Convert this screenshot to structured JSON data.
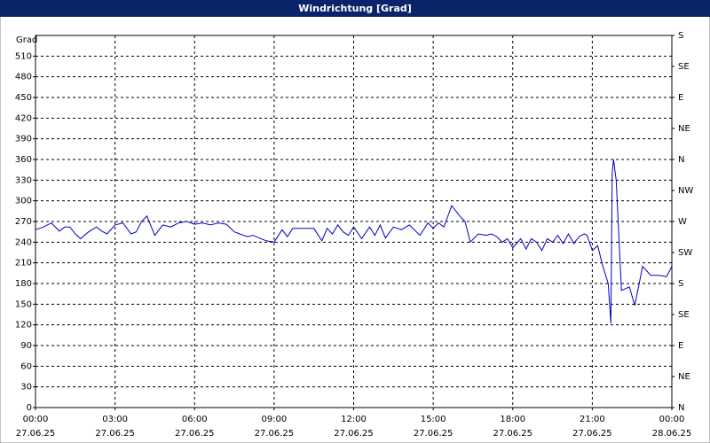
{
  "chart_data": {
    "type": "line",
    "title": "Windrichtung [Grad]",
    "y_label": "Grad",
    "xlim": [
      0,
      24
    ],
    "xticks": [
      {
        "value": 0,
        "label": "00:00",
        "date": "27.06.25"
      },
      {
        "value": 3,
        "label": "03:00",
        "date": "27.06.25"
      },
      {
        "value": 6,
        "label": "06:00",
        "date": "27.06.25"
      },
      {
        "value": 9,
        "label": "09:00",
        "date": "27.06.25"
      },
      {
        "value": 12,
        "label": "12:00",
        "date": "27.06.25"
      },
      {
        "value": 15,
        "label": "15:00",
        "date": "27.06.25"
      },
      {
        "value": 18,
        "label": "18:00",
        "date": "27.06.25"
      },
      {
        "value": 21,
        "label": "21:00",
        "date": "27.06.25"
      },
      {
        "value": 24,
        "label": "00:00",
        "date": "28.06.25"
      }
    ],
    "ylim": [
      0,
      540
    ],
    "yticks": [
      0,
      30,
      60,
      90,
      120,
      150,
      180,
      210,
      240,
      270,
      300,
      330,
      360,
      390,
      420,
      450,
      480,
      510
    ],
    "y2lim": [
      0,
      540
    ],
    "y2ticks": [
      {
        "value": 0,
        "label": "N"
      },
      {
        "value": 45,
        "label": "NE"
      },
      {
        "value": 90,
        "label": "E"
      },
      {
        "value": 135,
        "label": "SE"
      },
      {
        "value": 180,
        "label": "S"
      },
      {
        "value": 225,
        "label": "SW"
      },
      {
        "value": 270,
        "label": "W"
      },
      {
        "value": 315,
        "label": "NW"
      },
      {
        "value": 360,
        "label": "N"
      },
      {
        "value": 405,
        "label": "NE"
      },
      {
        "value": 450,
        "label": "E"
      },
      {
        "value": 495,
        "label": "SE"
      },
      {
        "value": 540,
        "label": "S"
      }
    ],
    "grid": true,
    "series": [
      {
        "color": "#0000c0",
        "x": [
          0,
          0.3,
          0.6,
          0.9,
          1.1,
          1.3,
          1.5,
          1.7,
          2.0,
          2.3,
          2.5,
          2.7,
          3.0,
          3.3,
          3.6,
          3.8,
          4.0,
          4.2,
          4.5,
          4.8,
          5.1,
          5.4,
          5.7,
          6.0,
          6.3,
          6.6,
          6.9,
          7.2,
          7.5,
          7.7,
          8.0,
          8.2,
          8.5,
          8.7,
          9.0,
          9.3,
          9.5,
          9.7,
          10.0,
          10.5,
          10.8,
          11.0,
          11.2,
          11.4,
          11.6,
          11.8,
          12.0,
          12.3,
          12.6,
          12.8,
          13.0,
          13.2,
          13.5,
          13.8,
          14.1,
          14.5,
          14.8,
          15.0,
          15.2,
          15.4,
          15.7,
          16.0,
          16.2,
          16.4,
          16.7,
          17.0,
          17.2,
          17.4,
          17.6,
          17.8,
          18.0,
          18.3,
          18.5,
          18.7,
          18.9,
          19.1,
          19.3,
          19.5,
          19.7,
          19.9,
          20.1,
          20.3,
          20.5,
          20.7,
          20.8,
          21.0,
          21.2,
          21.4,
          21.6,
          21.7,
          21.75,
          21.8,
          21.9,
          22.1,
          22.4,
          22.6,
          22.9,
          23.2,
          23.5,
          23.8,
          24.0
        ],
        "values": [
          258,
          262,
          268,
          256,
          262,
          262,
          252,
          245,
          255,
          262,
          256,
          252,
          265,
          268,
          252,
          255,
          270,
          278,
          250,
          265,
          262,
          268,
          270,
          266,
          268,
          265,
          268,
          266,
          255,
          252,
          248,
          250,
          245,
          242,
          240,
          258,
          248,
          260,
          260,
          260,
          242,
          260,
          252,
          265,
          255,
          250,
          262,
          245,
          262,
          250,
          265,
          246,
          262,
          258,
          265,
          250,
          268,
          260,
          268,
          262,
          293,
          278,
          270,
          240,
          252,
          250,
          252,
          248,
          240,
          245,
          232,
          245,
          230,
          245,
          240,
          228,
          245,
          240,
          250,
          238,
          252,
          238,
          248,
          252,
          250,
          228,
          235,
          205,
          180,
          122,
          340,
          360,
          330,
          170,
          175,
          148,
          205,
          192,
          192,
          190,
          205
        ]
      }
    ]
  }
}
